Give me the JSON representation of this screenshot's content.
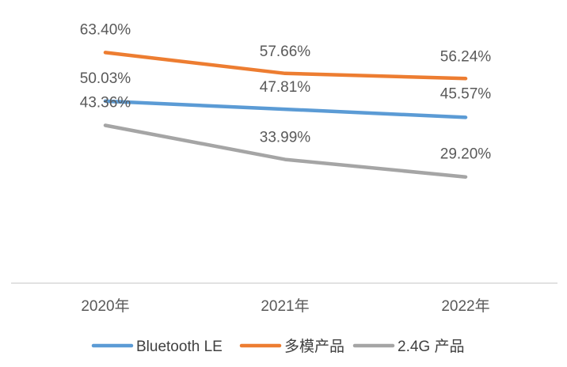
{
  "chart_data": {
    "type": "line",
    "title": "",
    "xlabel": "",
    "ylabel": "",
    "categories": [
      "2020年",
      "2021年",
      "2022年"
    ],
    "ylim": [
      0,
      70
    ],
    "grid": false,
    "legend_position": "bottom",
    "series": [
      {
        "name": "Bluetooth LE",
        "color": "#5b9bd5",
        "values": [
          50.03,
          47.81,
          45.57
        ],
        "labels": [
          "50.03%",
          "47.81%",
          "45.57%"
        ]
      },
      {
        "name": "多模产品",
        "color": "#ed7d31",
        "values": [
          63.4,
          57.66,
          56.24
        ],
        "labels": [
          "63.40%",
          "57.66%",
          "56.24%"
        ]
      },
      {
        "name": "2.4G 产品",
        "color": "#a5a5a5",
        "values": [
          43.36,
          33.99,
          29.2
        ],
        "labels": [
          "43.36%",
          "33.99%",
          "29.20%"
        ]
      }
    ]
  }
}
